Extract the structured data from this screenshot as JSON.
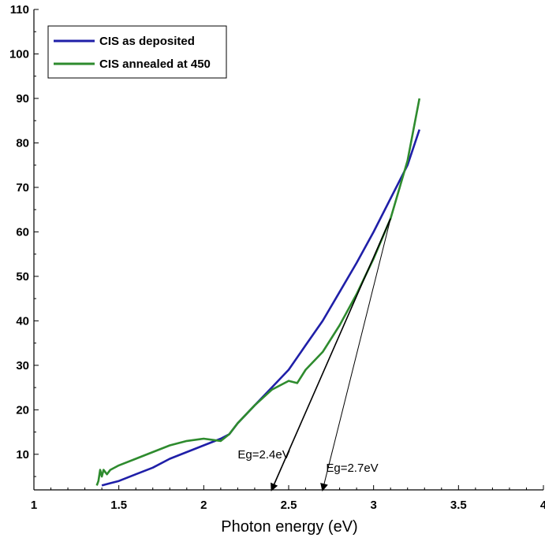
{
  "chart_data": {
    "type": "line",
    "title": "",
    "xlabel": "Photon energy (eV)",
    "ylabel": "",
    "xlim": [
      1,
      4
    ],
    "ylim": [
      2,
      110
    ],
    "x_ticks": [
      "1",
      "1.5",
      "2",
      "2.5",
      "3",
      "3.5",
      "4"
    ],
    "y_ticks": [
      "10",
      "20",
      "30",
      "40",
      "50",
      "60",
      "70",
      "80",
      "90",
      "100",
      "110"
    ],
    "grid": false,
    "legend_position": "top-left",
    "series": [
      {
        "name": "CIS as deposited",
        "color": "#1f1fa8",
        "x": [
          1.4,
          1.45,
          1.5,
          1.6,
          1.7,
          1.8,
          1.9,
          2.0,
          2.1,
          2.15,
          2.2,
          2.3,
          2.4,
          2.5,
          2.6,
          2.7,
          2.8,
          2.9,
          3.0,
          3.1,
          3.2,
          3.27
        ],
        "y": [
          3,
          3.5,
          4,
          5.5,
          7,
          9,
          10.5,
          12,
          13.5,
          14.5,
          17,
          21,
          25,
          29,
          34.5,
          40,
          46.5,
          53,
          60,
          67.5,
          75,
          83
        ]
      },
      {
        "name": "CIS annealed at 450",
        "color": "#2e8b2e",
        "x": [
          1.37,
          1.38,
          1.39,
          1.4,
          1.41,
          1.43,
          1.45,
          1.5,
          1.6,
          1.7,
          1.8,
          1.9,
          2.0,
          2.1,
          2.15,
          2.2,
          2.3,
          2.4,
          2.5,
          2.55,
          2.6,
          2.7,
          2.8,
          2.9,
          3.0,
          3.1,
          3.2,
          3.27
        ],
        "y": [
          3,
          4,
          6.5,
          5,
          6.5,
          5.5,
          6.5,
          7.5,
          9,
          10.5,
          12,
          13,
          13.5,
          13,
          14.5,
          17,
          21,
          24.5,
          26.5,
          26,
          29,
          33,
          39,
          46,
          54,
          63,
          76,
          90
        ]
      }
    ],
    "annotations": [
      {
        "text": "Eg=2.4eV",
        "x": 2.2,
        "y": 10
      },
      {
        "text": "Eg=2.7eV",
        "x": 2.72,
        "y": 7
      }
    ],
    "tangent_lines": [
      {
        "from": [
          3.1,
          63
        ],
        "to": [
          2.4,
          2
        ]
      },
      {
        "from": [
          3.1,
          63
        ],
        "to": [
          2.7,
          2
        ]
      }
    ]
  }
}
